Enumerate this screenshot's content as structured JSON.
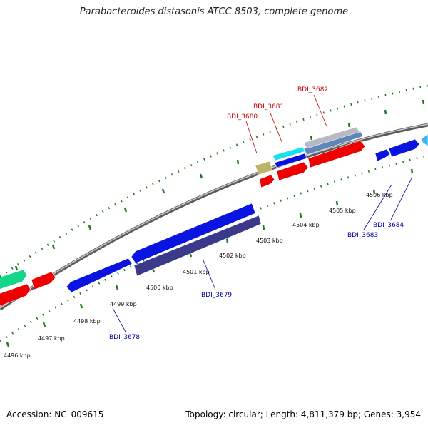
{
  "title": "Parabacteroides distasonis ATCC 8503, complete genome",
  "footer": {
    "accession": "Accession: NC_009615",
    "summary": "Topology: circular; Length: 4,811,379 bp; Genes: 3,954"
  },
  "colors": {
    "backbone": "#8c8c8c",
    "tick": "#1f7a1f",
    "forward_label": "#cc0000",
    "reverse_label": "#0000aa"
  },
  "ticks": [
    "4496 kbp",
    "4497 kbp",
    "4498 kbp",
    "4499 kbp",
    "4500 kbp",
    "4501 kbp",
    "4502 kbp",
    "4503 kbp",
    "4504 kbp",
    "4505 kbp",
    "4506 kbp"
  ],
  "gene_labels": {
    "forward": [
      "BDI_3680",
      "BDI_3681",
      "BDI_3682"
    ],
    "reverse": [
      "BDI_3678",
      "BDI_3679",
      "BDI_3683",
      "BDI_3684"
    ]
  },
  "legend_colors": {
    "red": "#ee0000",
    "blue": "#0a14e0",
    "dark_blue": "#3b3a8a",
    "green": "#14d68a",
    "cyan": "#18e0f0",
    "khaki": "#bdb46a",
    "steel": "#5e86b8",
    "gray": "#b9b9c6",
    "sky": "#38b6f0"
  }
}
